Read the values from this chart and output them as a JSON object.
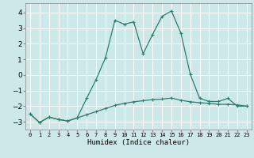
{
  "xlabel": "Humidex (Indice chaleur)",
  "x": [
    0,
    1,
    2,
    3,
    4,
    5,
    6,
    7,
    8,
    9,
    10,
    11,
    12,
    13,
    14,
    15,
    16,
    17,
    18,
    19,
    20,
    21,
    22,
    23
  ],
  "line1": [
    -2.5,
    -3.05,
    -2.7,
    -2.85,
    -2.95,
    -2.75,
    -2.55,
    -2.35,
    -2.15,
    -1.95,
    -1.82,
    -1.72,
    -1.65,
    -1.58,
    -1.55,
    -1.48,
    -1.62,
    -1.72,
    -1.78,
    -1.82,
    -1.88,
    -1.88,
    -1.92,
    -2.0
  ],
  "line2": [
    -2.5,
    -3.05,
    -2.7,
    -2.85,
    -2.95,
    -2.75,
    -1.5,
    -0.3,
    1.1,
    3.5,
    3.25,
    3.4,
    1.35,
    2.6,
    3.75,
    4.1,
    2.7,
    0.05,
    -1.5,
    -1.7,
    -1.7,
    -1.5,
    -2.0,
    -2.0
  ],
  "color": "#2e7d6e",
  "bg_color": "#cce8e8",
  "grid_color": "#b0d8d8",
  "ylim": [
    -3.5,
    4.6
  ],
  "xlim": [
    -0.5,
    23.5
  ],
  "yticks": [
    -3,
    -2,
    -1,
    0,
    1,
    2,
    3,
    4
  ],
  "xtick_labels": [
    "0",
    "1",
    "2",
    "3",
    "4",
    "5",
    "6",
    "7",
    "8",
    "9",
    "10",
    "11",
    "12",
    "13",
    "14",
    "15",
    "16",
    "17",
    "18",
    "19",
    "20",
    "21",
    "22",
    "23"
  ]
}
